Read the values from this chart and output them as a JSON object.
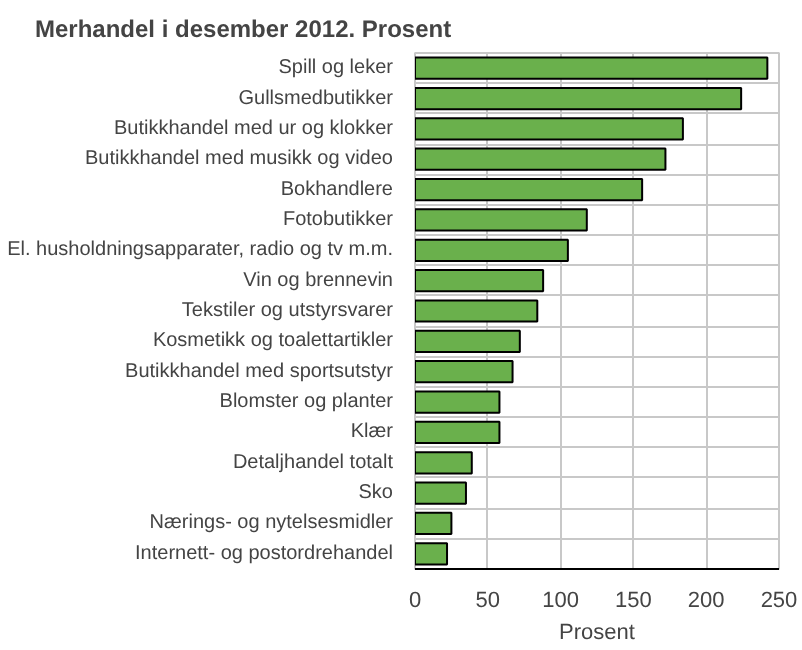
{
  "chart_data": {
    "type": "bar",
    "orientation": "horizontal",
    "title": "Merhandel i desember 2012. Prosent",
    "xlabel": "Prosent",
    "categories": [
      "Spill og leker",
      "Gullsmedbutikker",
      "Butikkhandel med ur og klokker",
      "Butikkhandel med musikk og video",
      "Bokhandlere",
      "Fotobutikker",
      "El. husholdningsapparater, radio og tv m.m.",
      "Vin og brennevin",
      "Tekstiler og utstyrsvarer",
      "Kosmetikk og toalettartikler",
      "Butikkhandel med sportsutstyr",
      "Blomster og planter",
      "Klær",
      "Detaljhandel totalt",
      "Sko",
      "Nærings- og nytelsesmidler",
      "Internett- og postordrehandel"
    ],
    "values": [
      242,
      224,
      184,
      172,
      156,
      118,
      105,
      88,
      84,
      72,
      67,
      58,
      58,
      39,
      35,
      25,
      22
    ],
    "color": "#6ab04c",
    "xlim": [
      0,
      250
    ],
    "xticks": [
      0,
      50,
      100,
      150,
      200,
      250
    ],
    "grid": true
  }
}
